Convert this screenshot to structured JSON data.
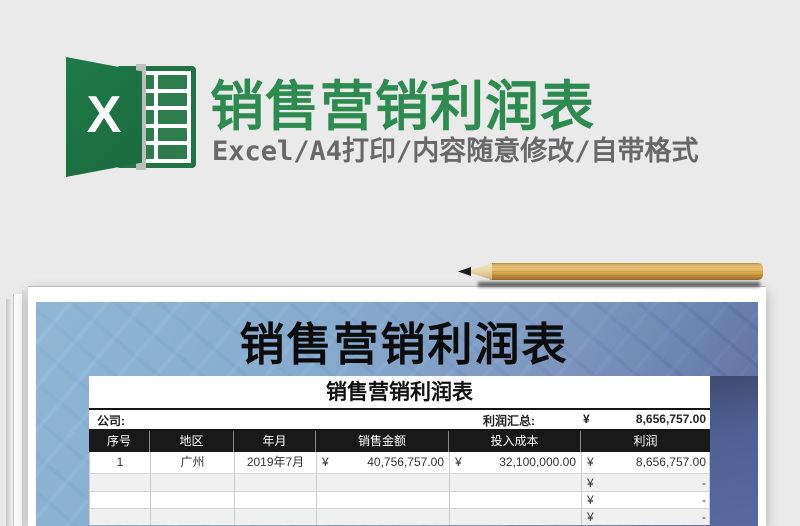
{
  "banner": {
    "excel_letter": "X",
    "title": "销售营销利润表",
    "subtitle": "Excel/A4打印/内容随意修改/自带格式"
  },
  "poster": {
    "title": "销售营销利润表"
  },
  "sheet": {
    "title": "销售营销利润表",
    "company_label": "公司:",
    "summary_label": "利润汇总:",
    "summary_currency": "¥",
    "summary_value": "8,656,757.00",
    "columns": [
      "序号",
      "地区",
      "年月",
      "销售金额",
      "投入成本",
      "利润"
    ],
    "rows": [
      {
        "no": "1",
        "region": "广州",
        "month": "2019年7月",
        "sales_c": "¥",
        "sales_v": "40,756,757.00",
        "cost_c": "¥",
        "cost_v": "32,100,000.00",
        "profit_c": "¥",
        "profit_v": "8,656,757.00"
      },
      {
        "no": "",
        "region": "",
        "month": "",
        "sales_c": "",
        "sales_v": "",
        "cost_c": "",
        "cost_v": "",
        "profit_c": "¥",
        "profit_v": "-"
      },
      {
        "no": "",
        "region": "",
        "month": "",
        "sales_c": "",
        "sales_v": "",
        "cost_c": "",
        "cost_v": "",
        "profit_c": "¥",
        "profit_v": "-"
      },
      {
        "no": "",
        "region": "",
        "month": "",
        "sales_c": "",
        "sales_v": "",
        "cost_c": "",
        "cost_v": "",
        "profit_c": "¥",
        "profit_v": "-"
      }
    ]
  },
  "colors": {
    "excel_green": "#217346",
    "title_green": "#2e8b50",
    "header_black": "#191919",
    "blue_light": "#90b9da",
    "blue_dark": "#4f6191"
  }
}
